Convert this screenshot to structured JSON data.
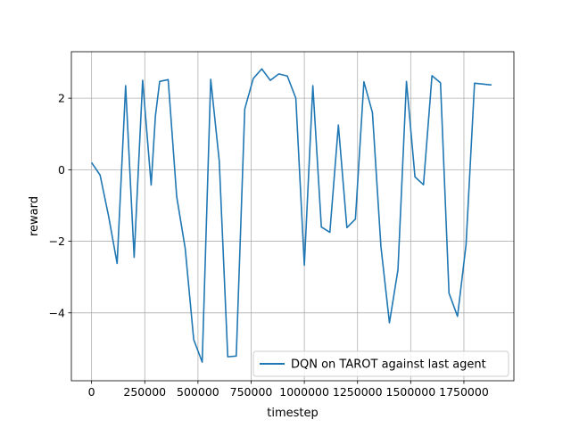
{
  "chart_data": {
    "type": "line",
    "xlabel": "timestep",
    "ylabel": "reward",
    "xlim": [
      -95000,
      1985000
    ],
    "ylim": [
      -5.9,
      3.3
    ],
    "xticks": [
      0,
      250000,
      500000,
      750000,
      1000000,
      1250000,
      1500000,
      1750000
    ],
    "xtick_labels": [
      "0",
      "250000",
      "500000",
      "750000",
      "1000000",
      "1250000",
      "1500000",
      "1750000"
    ],
    "yticks": [
      -4,
      -2,
      0,
      2
    ],
    "ytick_labels": [
      "−4",
      "−2",
      "0",
      "2"
    ],
    "grid": true,
    "legend_position": "lower-right",
    "series": [
      {
        "name": "DQN on TAROT against last agent",
        "color": "#1f77b4",
        "x": [
          0,
          40000,
          80000,
          120000,
          160000,
          200000,
          240000,
          280000,
          300000,
          320000,
          360000,
          400000,
          440000,
          480000,
          520000,
          560000,
          600000,
          640000,
          680000,
          720000,
          760000,
          800000,
          840000,
          880000,
          920000,
          960000,
          1000000,
          1040000,
          1080000,
          1120000,
          1160000,
          1200000,
          1240000,
          1280000,
          1320000,
          1360000,
          1400000,
          1440000,
          1480000,
          1520000,
          1560000,
          1600000,
          1640000,
          1680000,
          1720000,
          1760000,
          1800000,
          1880000
        ],
        "y": [
          0.2,
          -0.15,
          -1.3,
          -2.62,
          2.35,
          -2.45,
          2.5,
          -0.43,
          1.5,
          2.47,
          2.52,
          -0.75,
          -2.2,
          -4.75,
          -5.38,
          2.53,
          0.25,
          -5.23,
          -5.21,
          1.7,
          2.55,
          2.82,
          2.5,
          2.68,
          2.62,
          2.0,
          -2.67,
          2.35,
          -1.6,
          -1.75,
          1.25,
          -1.62,
          -1.38,
          2.46,
          1.6,
          -2.15,
          -4.28,
          -2.8,
          2.47,
          -0.2,
          -0.42,
          2.63,
          2.43,
          -3.45,
          -4.1,
          -2.1,
          2.42,
          2.37
        ]
      }
    ]
  }
}
